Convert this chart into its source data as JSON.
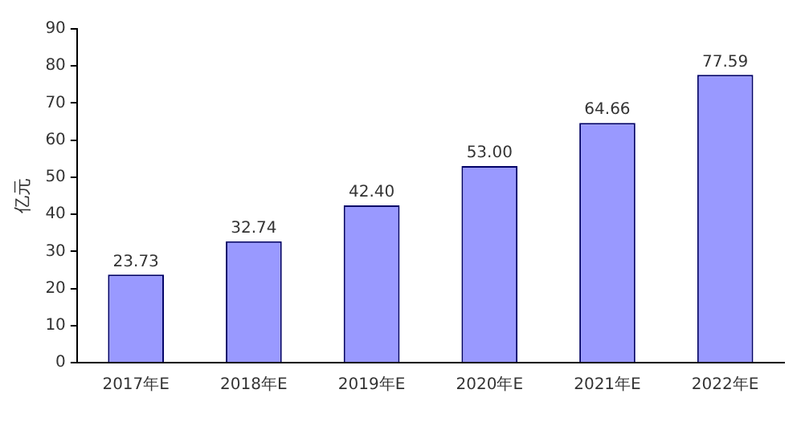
{
  "chart_data": {
    "type": "bar",
    "ylabel": "亿元",
    "categories": [
      "2017年E",
      "2018年E",
      "2019年E",
      "2020年E",
      "2021年E",
      "2022年E"
    ],
    "values": [
      23.73,
      32.74,
      42.4,
      53.0,
      64.66,
      77.59
    ],
    "value_labels": [
      "23.73",
      "32.74",
      "42.40",
      "53.00",
      "64.66",
      "77.59"
    ],
    "color": "#9999ff",
    "ylim": [
      0,
      90
    ],
    "yticks": [
      0,
      10,
      20,
      30,
      40,
      50,
      60,
      70,
      80,
      90
    ],
    "grid": false,
    "legend": false
  }
}
